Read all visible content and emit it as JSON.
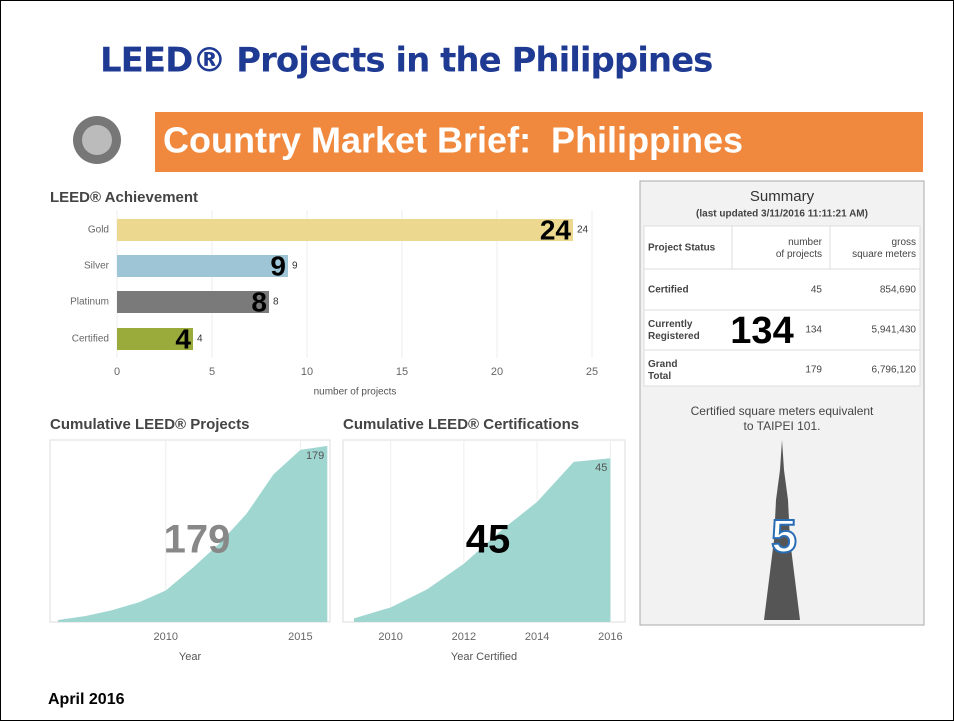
{
  "title": "LEED® Projects in the Philippines",
  "banner": "Country Market Brief:  Philippines",
  "date": "April 2016",
  "summary": {
    "title": "Summary",
    "subtitle": "(last updated 3/11/2016 11:11:21 AM)",
    "columns": [
      "Project Status",
      "number of projects",
      "gross square meters"
    ],
    "rows": [
      [
        "Certified",
        "45",
        "854,690"
      ],
      [
        "Currently Registered",
        "134",
        "5,941,430"
      ],
      [
        "Grand Total",
        "179",
        "6,796,120"
      ]
    ],
    "note": "Certified square meters equivalent to TAIPEI 101.",
    "taipei_equivalent": "5"
  },
  "chart_data": [
    {
      "type": "hbar",
      "title": "LEED® Achievement",
      "x_label": "number of projects",
      "categories": [
        "Gold",
        "Silver",
        "Platinum",
        "Certified"
      ],
      "values": [
        24,
        9,
        8,
        4
      ],
      "colors": [
        "#ecd98f",
        "#9ec5d6",
        "#7a7a7a",
        "#9aab3c"
      ],
      "xlim": [
        0,
        26
      ],
      "xticks": [
        0,
        5,
        10,
        15,
        20,
        25
      ]
    },
    {
      "type": "area",
      "title": "Cumulative LEED® Projects",
      "x_label": "Year",
      "color": "#9fd6d0",
      "x": [
        2006,
        2007,
        2008,
        2009,
        2010,
        2011,
        2012,
        2013,
        2014,
        2015,
        2016
      ],
      "values": [
        2,
        6,
        12,
        20,
        32,
        55,
        80,
        110,
        150,
        175,
        179
      ],
      "xlim": [
        2005.7,
        2016.1
      ],
      "ylim": [
        0,
        185
      ],
      "xticks": [
        2010,
        2015
      ]
    },
    {
      "type": "area",
      "title": "Cumulative LEED® Certifications",
      "x_label": "Year Certified",
      "color": "#9fd6d0",
      "x": [
        2009,
        2010,
        2011,
        2012,
        2013,
        2014,
        2015,
        2016
      ],
      "values": [
        1,
        4,
        9,
        16,
        25,
        33,
        44,
        45
      ],
      "xlim": [
        2008.7,
        2016.4
      ],
      "ylim": [
        0,
        50
      ],
      "xticks": [
        2010,
        2012,
        2014,
        2016
      ]
    }
  ]
}
